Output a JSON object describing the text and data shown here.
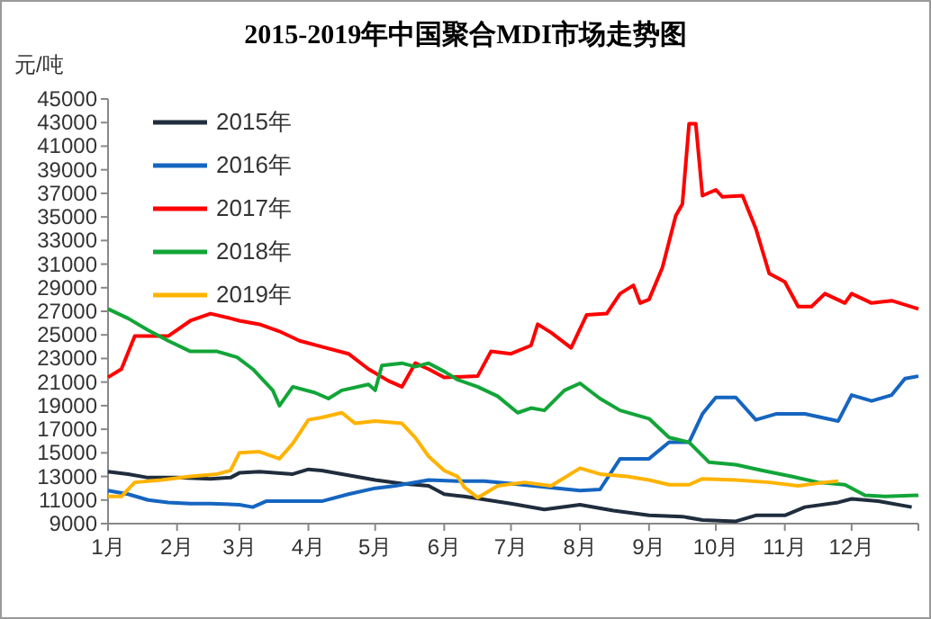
{
  "chart_data": {
    "type": "line",
    "title": "2015-2019年中国聚合MDI市场走势图",
    "ylabel": "元/吨",
    "legend": "top left",
    "xlim": [
      "--01-01",
      "--12-31"
    ],
    "xticks": [
      {
        "value": "--01-01",
        "label": "1月"
      },
      {
        "value": "--02-01",
        "label": "2月"
      },
      {
        "value": "--03-01",
        "label": "3月"
      },
      {
        "value": "--04-01",
        "label": "4月"
      },
      {
        "value": "--05-01",
        "label": "5月"
      },
      {
        "value": "--06-01",
        "label": "6月"
      },
      {
        "value": "--07-01",
        "label": "7月"
      },
      {
        "value": "--08-01",
        "label": "8月"
      },
      {
        "value": "--09-01",
        "label": "9月"
      },
      {
        "value": "--10-01",
        "label": "10月"
      },
      {
        "value": "--11-01",
        "label": "11月"
      },
      {
        "value": "--12-01",
        "label": "12月"
      },
      {
        "value": "--12-31",
        "label": null
      }
    ],
    "ylim": [
      9000,
      45000
    ],
    "yticks": [
      9000,
      11000,
      13000,
      15000,
      17000,
      19000,
      21000,
      23000,
      25000,
      27000,
      29000,
      31000,
      33000,
      35000,
      37000,
      39000,
      41000,
      43000,
      45000
    ],
    "series": [
      {
        "name": "2015年",
        "color": "#1f2d3d",
        "x": [
          "--01-01",
          "--01-10",
          "--01-19",
          "--02-01",
          "--02-16",
          "--02-25",
          "--03-01",
          "--03-10",
          "--03-25",
          "--04-01",
          "--04-07",
          "--04-19",
          "--05-01",
          "--05-13",
          "--05-25",
          "--06-01",
          "--06-10",
          "--07-01",
          "--07-16",
          "--08-01",
          "--08-16",
          "--09-01",
          "--09-16",
          "--09-25",
          "--10-10",
          "--10-19",
          "--11-01",
          "--11-10",
          "--11-25",
          "--12-01",
          "--12-13",
          "--12-28"
        ],
        "values": [
          13400,
          13200,
          12900,
          12900,
          12800,
          12900,
          13300,
          13400,
          13200,
          13600,
          13500,
          13100,
          12700,
          12400,
          12200,
          11500,
          11300,
          10700,
          10200,
          10600,
          10100,
          9700,
          9600,
          9300,
          9200,
          9700,
          9700,
          10400,
          10800,
          11100,
          10900,
          10400
        ]
      },
      {
        "name": "2016年",
        "color": "#1565c0",
        "x": [
          "--01-01",
          "--01-10",
          "--01-19",
          "--01-28",
          "--02-07",
          "--02-16",
          "--03-01",
          "--03-07",
          "--03-13",
          "--03-25",
          "--04-07",
          "--04-19",
          "--05-01",
          "--05-10",
          "--05-25",
          "--06-07",
          "--06-19",
          "--07-01",
          "--07-16",
          "--08-01",
          "--08-10",
          "--08-19",
          "--09-01",
          "--09-10",
          "--09-19",
          "--09-25",
          "--10-01",
          "--10-10",
          "--10-19",
          "--10-28",
          "--11-10",
          "--11-25",
          "--12-01",
          "--12-10",
          "--12-19",
          "--12-25",
          "--12-31"
        ],
        "values": [
          11800,
          11500,
          11000,
          10800,
          10700,
          10700,
          10600,
          10400,
          10900,
          10900,
          10900,
          11500,
          12000,
          12200,
          12700,
          12600,
          12600,
          12400,
          12100,
          11800,
          11900,
          14500,
          14500,
          15900,
          15900,
          18300,
          19700,
          19700,
          17800,
          18300,
          18300,
          17700,
          19900,
          19400,
          19900,
          21300,
          21500
        ]
      },
      {
        "name": "2017年",
        "color": "#ff0000",
        "x": [
          "--01-01",
          "--01-07",
          "--01-13",
          "--01-28",
          "--02-07",
          "--02-16",
          "--02-25",
          "--03-01",
          "--03-10",
          "--03-19",
          "--03-28",
          "--04-07",
          "--04-19",
          "--04-28",
          "--05-07",
          "--05-13",
          "--05-19",
          "--05-25",
          "--06-01",
          "--06-16",
          "--06-22",
          "--07-01",
          "--07-10",
          "--07-13",
          "--07-19",
          "--07-28",
          "--08-04",
          "--08-13",
          "--08-19",
          "--08-25",
          "--08-28",
          "--09-01",
          "--09-07",
          "--09-13",
          "--09-16",
          "--09-19",
          "--09-22",
          "--09-25",
          "--10-01",
          "--10-04",
          "--10-13",
          "--10-19",
          "--10-25",
          "--11-01",
          "--11-07",
          "--11-13",
          "--11-19",
          "--11-28",
          "--12-01",
          "--12-10",
          "--12-19",
          "--12-31"
        ],
        "values": [
          21400,
          22100,
          24900,
          24900,
          26200,
          26800,
          26400,
          26200,
          25900,
          25300,
          24500,
          24000,
          23400,
          22100,
          21100,
          20600,
          22600,
          22100,
          21400,
          21500,
          23600,
          23400,
          24100,
          25900,
          25200,
          23900,
          26700,
          26800,
          28500,
          29200,
          27700,
          28000,
          30700,
          35100,
          36100,
          42900,
          42900,
          36800,
          37300,
          36700,
          36800,
          34000,
          30200,
          29500,
          27400,
          27400,
          28500,
          27700,
          28500,
          27700,
          27900,
          27200
        ]
      },
      {
        "name": "2018年",
        "color": "#12a538",
        "x": [
          "--01-01",
          "--01-10",
          "--01-19",
          "--01-28",
          "--02-07",
          "--02-19",
          "--02-28",
          "--03-07",
          "--03-16",
          "--03-19",
          "--03-25",
          "--04-04",
          "--04-10",
          "--04-16",
          "--04-28",
          "--05-01",
          "--05-04",
          "--05-13",
          "--05-19",
          "--05-25",
          "--06-01",
          "--06-07",
          "--06-16",
          "--06-25",
          "--07-04",
          "--07-10",
          "--07-16",
          "--07-25",
          "--08-01",
          "--08-10",
          "--08-19",
          "--09-01",
          "--09-10",
          "--09-19",
          "--09-28",
          "--10-10",
          "--10-22",
          "--11-04",
          "--11-16",
          "--11-28",
          "--12-07",
          "--12-16",
          "--12-31"
        ],
        "values": [
          27200,
          26400,
          25400,
          24500,
          23600,
          23600,
          23100,
          22100,
          20300,
          19000,
          20600,
          20100,
          19600,
          20300,
          20800,
          20300,
          22400,
          22600,
          22300,
          22600,
          21900,
          21200,
          20600,
          19800,
          18400,
          18800,
          18600,
          20300,
          20900,
          19600,
          18600,
          17900,
          16300,
          15900,
          14200,
          14000,
          13500,
          13000,
          12500,
          12300,
          11400,
          11300,
          11400
        ]
      },
      {
        "name": "2019年",
        "color": "#ffb300",
        "x": [
          "--01-01",
          "--01-07",
          "--01-13",
          "--01-25",
          "--02-07",
          "--02-19",
          "--02-25",
          "--03-01",
          "--03-10",
          "--03-19",
          "--03-25",
          "--04-01",
          "--04-07",
          "--04-16",
          "--04-22",
          "--05-01",
          "--05-13",
          "--05-19",
          "--05-25",
          "--06-01",
          "--06-07",
          "--06-10",
          "--06-16",
          "--06-25",
          "--07-07",
          "--07-19",
          "--08-01",
          "--08-10",
          "--08-22",
          "--09-01",
          "--09-10",
          "--09-19",
          "--09-25",
          "--10-10",
          "--10-25",
          "--11-07",
          "--11-19",
          "--11-25"
        ],
        "values": [
          11300,
          11300,
          12500,
          12700,
          13000,
          13200,
          13500,
          15000,
          15100,
          14500,
          15800,
          17800,
          18000,
          18400,
          17500,
          17700,
          17500,
          16300,
          14700,
          13500,
          13000,
          12100,
          11200,
          12200,
          12500,
          12200,
          13700,
          13200,
          13000,
          12700,
          12300,
          12300,
          12800,
          12700,
          12500,
          12200,
          12500,
          12600
        ]
      }
    ]
  }
}
